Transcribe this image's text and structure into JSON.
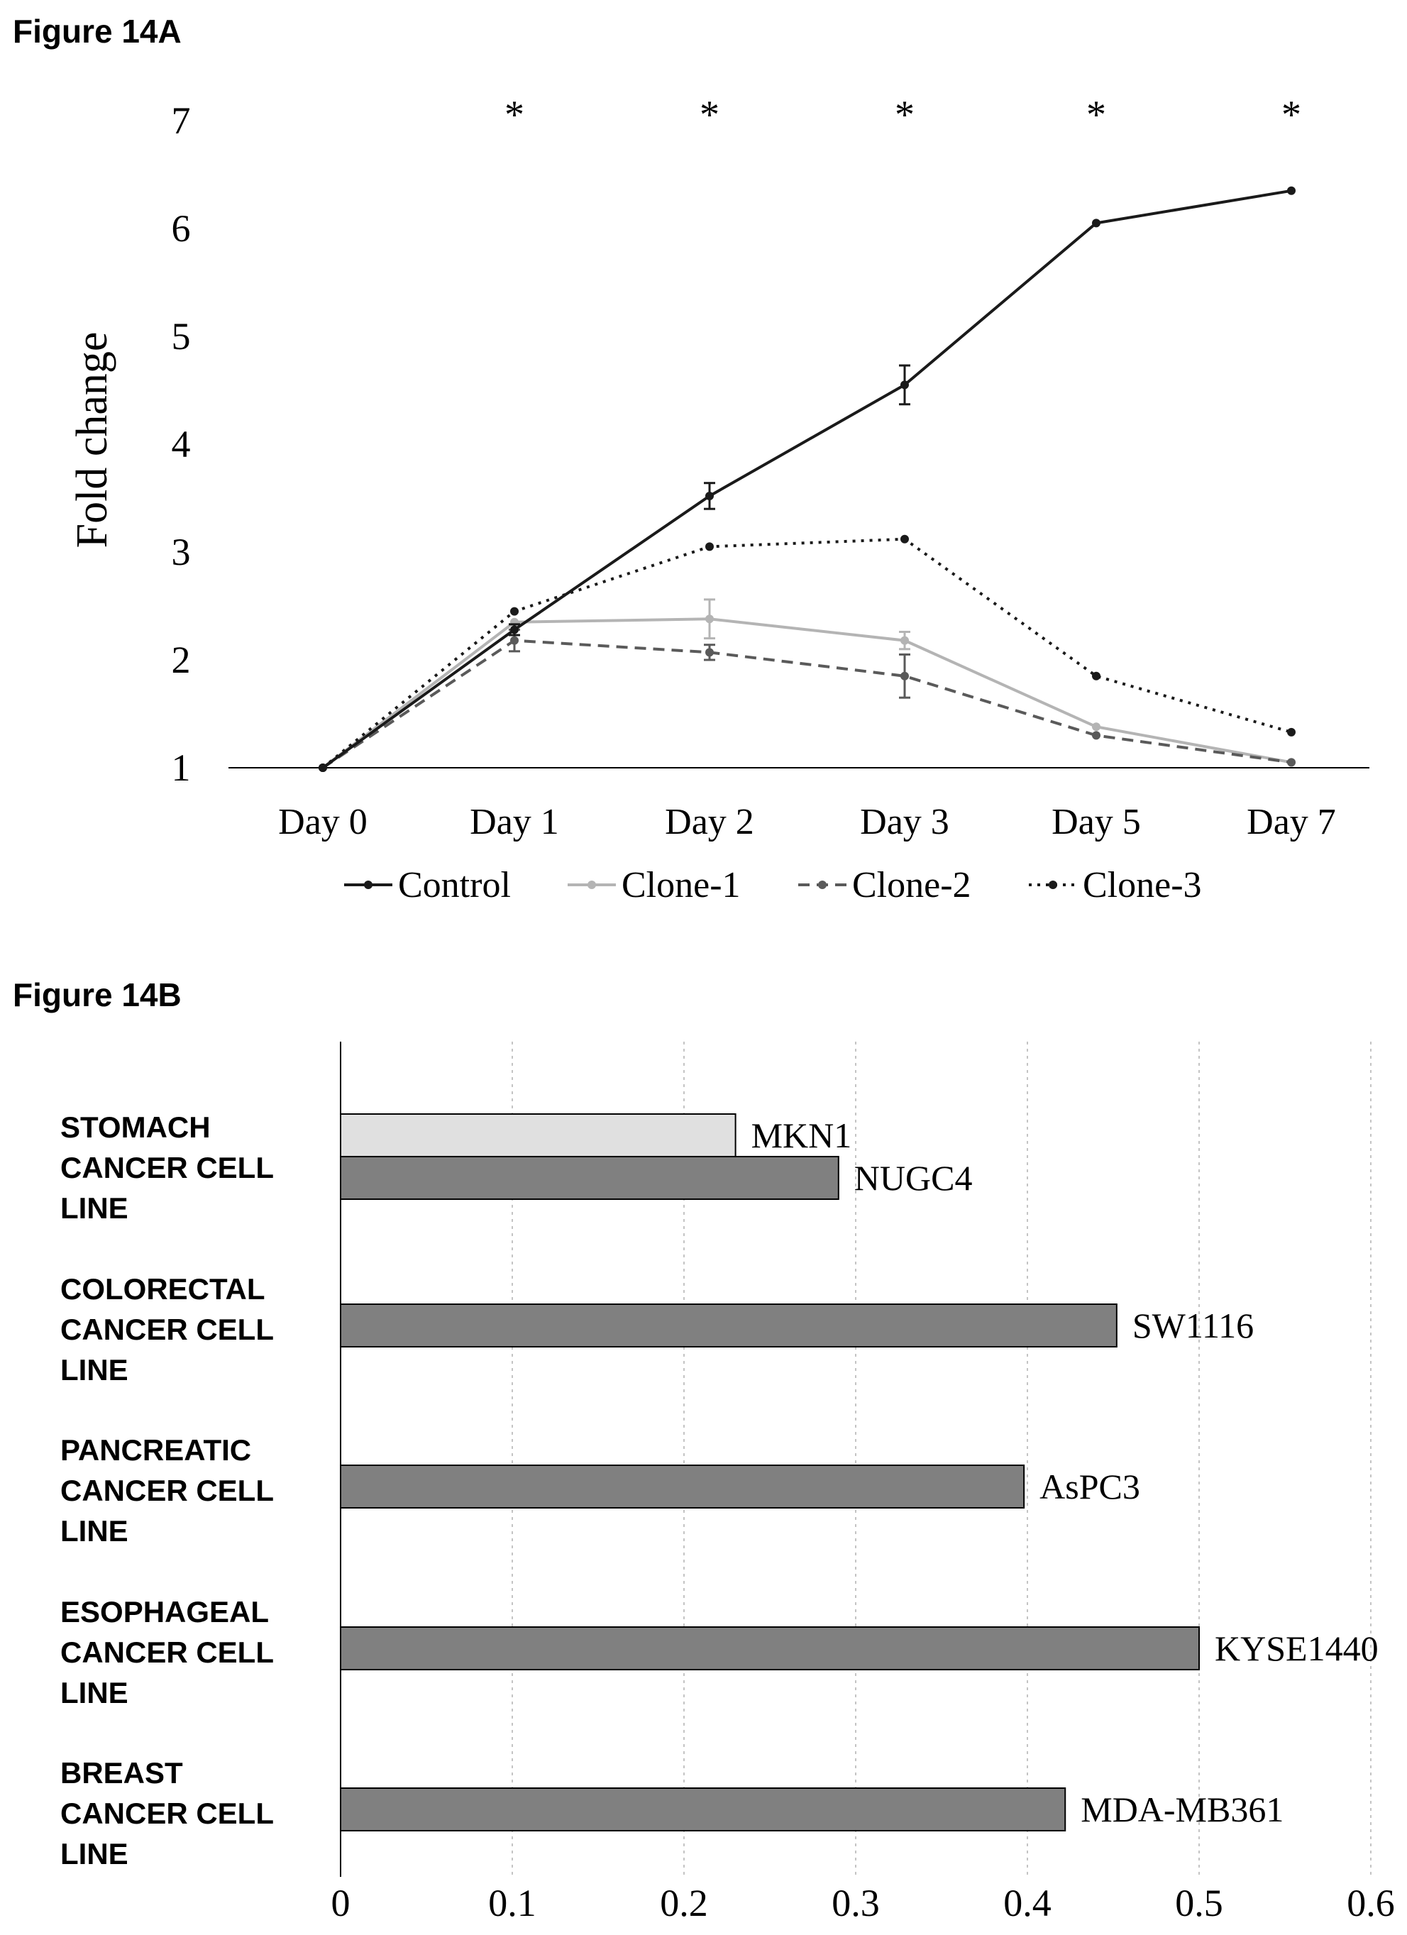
{
  "chart_data": [
    {
      "type": "line",
      "figure_label": "Figure 14A",
      "ylabel": "Fold change",
      "xlabel": "",
      "categories": [
        "Day 0",
        "Day 1",
        "Day 2",
        "Day 3",
        "Day 5",
        "Day 7"
      ],
      "ylim": [
        1,
        7
      ],
      "yticks": [
        "1",
        "2",
        "3",
        "4",
        "5",
        "6",
        "7"
      ],
      "significance_markers": [
        "",
        "*",
        "*",
        "*",
        "*",
        "*"
      ],
      "legend_position": "bottom",
      "grid": false,
      "series": [
        {
          "name": "Control",
          "style": "solid",
          "color": "#1a1a1a",
          "values": [
            1.0,
            2.28,
            3.52,
            4.55,
            6.05,
            6.35
          ],
          "errors": [
            0,
            0.05,
            0.12,
            0.18,
            0,
            0
          ]
        },
        {
          "name": "Clone-1",
          "style": "solid",
          "color": "#b4b4b4",
          "values": [
            1.0,
            2.35,
            2.38,
            2.18,
            1.38,
            1.05
          ],
          "errors": [
            0,
            0,
            0.18,
            0.08,
            0,
            0
          ]
        },
        {
          "name": "Clone-2",
          "style": "dashed",
          "color": "#5a5a5a",
          "values": [
            1.0,
            2.18,
            2.07,
            1.85,
            1.3,
            1.05
          ],
          "errors": [
            0,
            0.1,
            0.07,
            0.2,
            0,
            0
          ]
        },
        {
          "name": "Clone-3",
          "style": "dotted",
          "color": "#1a1a1a",
          "values": [
            1.0,
            2.45,
            3.05,
            3.12,
            1.85,
            1.33
          ],
          "errors": [
            0,
            0,
            0,
            0,
            0,
            0
          ]
        }
      ]
    },
    {
      "type": "bar",
      "orientation": "horizontal",
      "figure_label": "Figure 14B",
      "xlim": [
        0,
        0.6
      ],
      "xticks": [
        "0",
        "0.1",
        "0.2",
        "0.3",
        "0.4",
        "0.5",
        "0.6"
      ],
      "grid": true,
      "groups": [
        {
          "label": "STOMACH CANCER CELL LINE",
          "lines": [
            "STOMACH",
            "CANCER CELL",
            "LINE"
          ],
          "bars": [
            {
              "name": "MKN1",
              "value": 0.23,
              "color": "#e0e0e0"
            },
            {
              "name": "NUGC4",
              "value": 0.29,
              "color": "#808080"
            }
          ]
        },
        {
          "label": "COLORECTAL CANCER CELL LINE",
          "lines": [
            "COLORECTAL",
            "CANCER CELL",
            "LINE"
          ],
          "bars": [
            {
              "name": "SW1116",
              "value": 0.452,
              "color": "#808080"
            }
          ]
        },
        {
          "label": "PANCREATIC CANCER CELL LINE",
          "lines": [
            "PANCREATIC",
            "CANCER CELL",
            "LINE"
          ],
          "bars": [
            {
              "name": "AsPC3",
              "value": 0.398,
              "color": "#808080"
            }
          ]
        },
        {
          "label": "ESOPHAGEAL CANCER CELL LINE",
          "lines": [
            "ESOPHAGEAL",
            "CANCER CELL",
            "LINE"
          ],
          "bars": [
            {
              "name": "KYSE1440",
              "value": 0.5,
              "color": "#808080"
            }
          ]
        },
        {
          "label": "BREAST CANCER CELL LINE",
          "lines": [
            "BREAST",
            "CANCER CELL",
            "LINE"
          ],
          "bars": [
            {
              "name": "MDA-MB361",
              "value": 0.422,
              "color": "#808080"
            }
          ]
        }
      ]
    }
  ]
}
